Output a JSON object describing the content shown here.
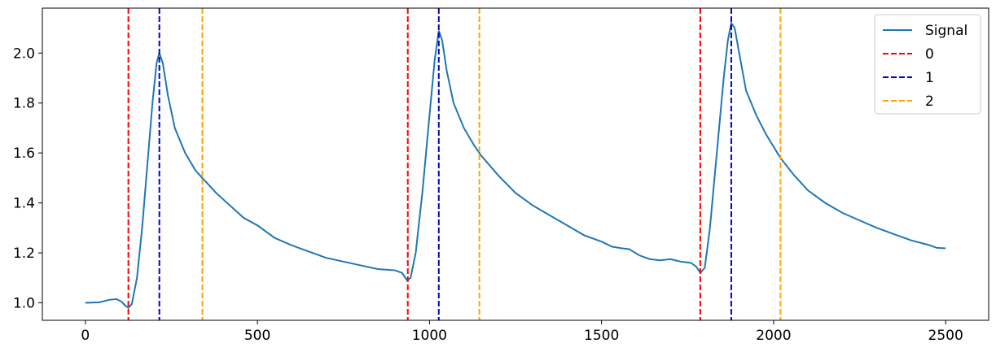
{
  "chart_data": {
    "type": "line",
    "x_ticks": [
      0,
      500,
      1000,
      1500,
      2000,
      2500
    ],
    "y_ticks": [
      1.0,
      1.2,
      1.4,
      1.6,
      1.8,
      2.0
    ],
    "y_tick_labels": [
      "1.0",
      "1.2",
      "1.4",
      "1.6",
      "1.8",
      "2.0"
    ],
    "xlim": [
      -125,
      2625
    ],
    "ylim": [
      0.93,
      2.18
    ],
    "grid": false,
    "legend_position": "top-right",
    "legend": [
      "Signal",
      "0",
      "1",
      "2"
    ],
    "series": [
      {
        "name": "Signal",
        "color": "#1f77b4",
        "style": "solid",
        "points": [
          [
            0,
            1.0
          ],
          [
            40,
            1.002
          ],
          [
            70,
            1.012
          ],
          [
            90,
            1.015
          ],
          [
            105,
            1.005
          ],
          [
            115,
            0.99
          ],
          [
            125,
            0.98
          ],
          [
            135,
            0.995
          ],
          [
            150,
            1.1
          ],
          [
            165,
            1.3
          ],
          [
            180,
            1.55
          ],
          [
            195,
            1.8
          ],
          [
            207,
            1.96
          ],
          [
            215,
            2.0
          ],
          [
            225,
            1.96
          ],
          [
            240,
            1.83
          ],
          [
            260,
            1.7
          ],
          [
            290,
            1.6
          ],
          [
            320,
            1.53
          ],
          [
            340,
            1.5
          ],
          [
            380,
            1.44
          ],
          [
            420,
            1.39
          ],
          [
            460,
            1.34
          ],
          [
            500,
            1.31
          ],
          [
            550,
            1.26
          ],
          [
            600,
            1.23
          ],
          [
            650,
            1.205
          ],
          [
            700,
            1.18
          ],
          [
            750,
            1.165
          ],
          [
            800,
            1.15
          ],
          [
            850,
            1.135
          ],
          [
            900,
            1.13
          ],
          [
            920,
            1.12
          ],
          [
            935,
            1.09
          ],
          [
            945,
            1.1
          ],
          [
            960,
            1.2
          ],
          [
            980,
            1.45
          ],
          [
            1000,
            1.75
          ],
          [
            1015,
            1.97
          ],
          [
            1027,
            2.09
          ],
          [
            1037,
            2.05
          ],
          [
            1050,
            1.93
          ],
          [
            1070,
            1.8
          ],
          [
            1100,
            1.7
          ],
          [
            1130,
            1.63
          ],
          [
            1150,
            1.59
          ],
          [
            1200,
            1.51
          ],
          [
            1250,
            1.44
          ],
          [
            1300,
            1.39
          ],
          [
            1350,
            1.35
          ],
          [
            1400,
            1.31
          ],
          [
            1450,
            1.27
          ],
          [
            1500,
            1.245
          ],
          [
            1530,
            1.225
          ],
          [
            1560,
            1.218
          ],
          [
            1580,
            1.215
          ],
          [
            1610,
            1.19
          ],
          [
            1640,
            1.175
          ],
          [
            1670,
            1.17
          ],
          [
            1700,
            1.175
          ],
          [
            1730,
            1.165
          ],
          [
            1760,
            1.16
          ],
          [
            1775,
            1.145
          ],
          [
            1787,
            1.12
          ],
          [
            1800,
            1.14
          ],
          [
            1815,
            1.3
          ],
          [
            1835,
            1.6
          ],
          [
            1855,
            1.9
          ],
          [
            1867,
            2.05
          ],
          [
            1877,
            2.12
          ],
          [
            1887,
            2.1
          ],
          [
            1900,
            2.0
          ],
          [
            1920,
            1.85
          ],
          [
            1950,
            1.75
          ],
          [
            1980,
            1.67
          ],
          [
            2020,
            1.58
          ],
          [
            2060,
            1.51
          ],
          [
            2100,
            1.45
          ],
          [
            2150,
            1.4
          ],
          [
            2200,
            1.36
          ],
          [
            2250,
            1.33
          ],
          [
            2300,
            1.3
          ],
          [
            2350,
            1.275
          ],
          [
            2400,
            1.25
          ],
          [
            2450,
            1.232
          ],
          [
            2475,
            1.22
          ],
          [
            2500,
            1.218
          ]
        ]
      },
      {
        "name": "0",
        "color": "#ff0000",
        "style": "dashed",
        "vlines": [
          125,
          937,
          1787
        ]
      },
      {
        "name": "1",
        "color": "#0000cc",
        "style": "dashed",
        "vlines": [
          215,
          1027,
          1877
        ]
      },
      {
        "name": "2",
        "color": "#ffa500",
        "style": "dashed",
        "vlines": [
          340,
          1145,
          2020
        ]
      }
    ]
  }
}
